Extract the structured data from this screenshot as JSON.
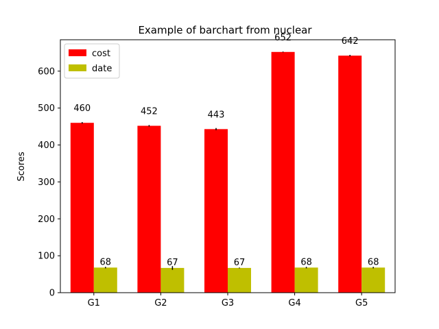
{
  "chart_data": {
    "type": "bar",
    "title": "Example of barchart from nuclear",
    "xlabel": "",
    "ylabel": "Scores",
    "categories": [
      "G1",
      "G2",
      "G3",
      "G4",
      "G5"
    ],
    "series": [
      {
        "name": "cost",
        "values": [
          460,
          452,
          443,
          652,
          642
        ],
        "errors": [
          2,
          2,
          3,
          1,
          2
        ],
        "color": "#ff0000"
      },
      {
        "name": "date",
        "values": [
          68,
          67,
          67,
          68,
          68
        ],
        "errors": [
          2,
          5,
          1,
          2,
          2
        ],
        "color": "#bfbf00"
      }
    ],
    "ylim": [
      0,
      685
    ],
    "yticks": [
      0,
      100,
      200,
      300,
      400,
      500,
      600
    ],
    "grid": false,
    "legend_position": "top-left"
  }
}
